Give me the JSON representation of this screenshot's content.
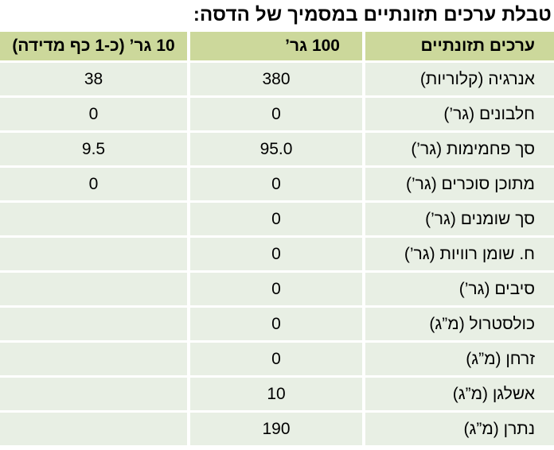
{
  "title": "טבלת ערכים תזונתיים במסמיך של הדסה:",
  "colors": {
    "header_bg": "#ccd89b",
    "row_bg": "#e8efe4",
    "gap_bg": "#ffffff",
    "text": "#000000"
  },
  "table": {
    "direction": "rtl",
    "columns": [
      {
        "key": "name",
        "label": "ערכים תזונתיים"
      },
      {
        "key": "per100",
        "label": "100 גר’"
      },
      {
        "key": "per10",
        "label": "10 גר’ (כ-1 כף מדידה)"
      }
    ],
    "rows": [
      {
        "name": "אנרגיה (קלוריות)",
        "per100": "380",
        "per10": "38"
      },
      {
        "name": "חלבונים (גר’)",
        "per100": "0",
        "per10": "0"
      },
      {
        "name": "סך פחמימות (גר’)",
        "per100": "95.0",
        "per10": "9.5"
      },
      {
        "name": "מתוכן סוכרים (גר’)",
        "per100": "0",
        "per10": "0"
      },
      {
        "name": "סך שומנים (גר’)",
        "per100": "0",
        "per10": ""
      },
      {
        "name": "ח. שומן רוויות (גר’)",
        "per100": "0",
        "per10": ""
      },
      {
        "name": "סיבים (גר’)",
        "per100": "0",
        "per10": ""
      },
      {
        "name": "כולסטרול (מ”ג)",
        "per100": "0",
        "per10": ""
      },
      {
        "name": "זרחן (מ”ג)",
        "per100": "0",
        "per10": ""
      },
      {
        "name": "אשלגן (מ”ג)",
        "per100": "10",
        "per10": ""
      },
      {
        "name": "נתרן (מ”ג)",
        "per100": "190",
        "per10": ""
      }
    ]
  }
}
